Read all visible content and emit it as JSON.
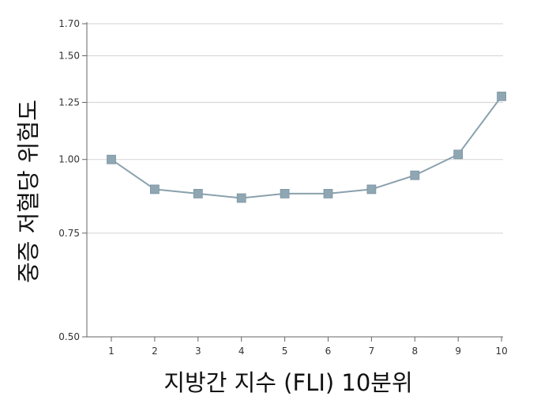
{
  "chart_data": {
    "type": "line",
    "title": "",
    "xlabel": "지방간 지수 (FLI) 10분위",
    "ylabel": "중증 저혈당 위험도",
    "x": [
      1,
      2,
      3,
      4,
      5,
      6,
      7,
      8,
      9,
      10
    ],
    "x_tick_labels": [
      "1",
      "2",
      "3",
      "4",
      "5",
      "6",
      "7",
      "8",
      "9",
      "10"
    ],
    "y_scale": "log",
    "ylim": [
      0.5,
      1.7
    ],
    "y_ticks": [
      0.5,
      0.75,
      1.0,
      1.25,
      1.5,
      1.7
    ],
    "y_tick_labels": [
      "0.50",
      "0.75",
      "1.00",
      "1.25",
      "1.50",
      "1.70"
    ],
    "grid": true,
    "legend": "none",
    "series": [
      {
        "values": [
          1.0,
          0.89,
          0.875,
          0.86,
          0.875,
          0.875,
          0.89,
          0.94,
          1.02,
          1.28
        ]
      }
    ],
    "colors": {
      "line": "#8aa1ad",
      "marker": "#8fa6b3",
      "grid": "#d9d9d9",
      "axis": "#666666"
    }
  }
}
